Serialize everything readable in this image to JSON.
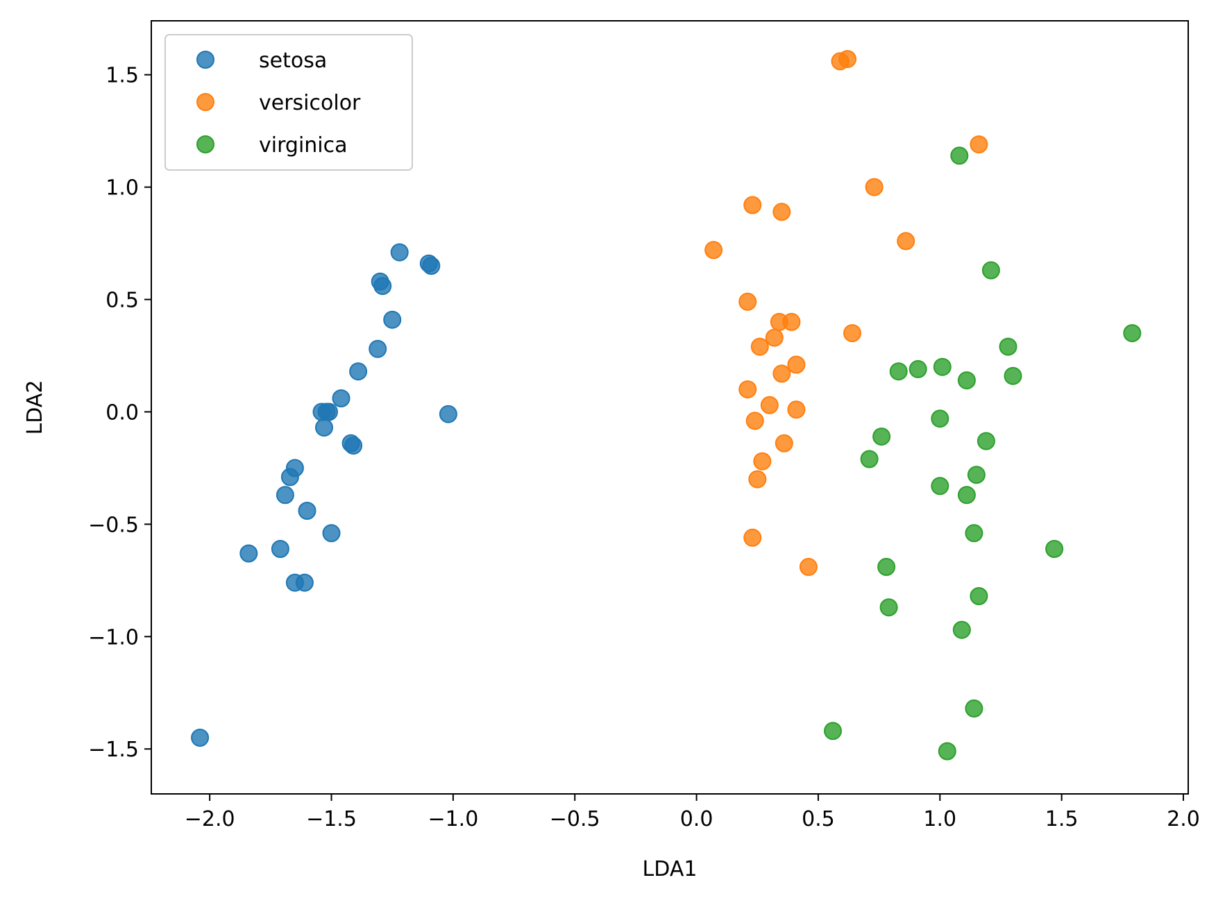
{
  "chart_data": {
    "type": "scatter",
    "title": "",
    "xlabel": "LDA1",
    "ylabel": "LDA2",
    "xlim": [
      -2.24,
      2.02
    ],
    "ylim": [
      -1.7,
      1.74
    ],
    "xticks": [
      -2.0,
      -1.5,
      -1.0,
      -0.5,
      0.0,
      0.5,
      1.0,
      1.5,
      2.0
    ],
    "yticks": [
      -1.5,
      -1.0,
      -0.5,
      0.0,
      0.5,
      1.0,
      1.5
    ],
    "xtick_labels": [
      "−2.0",
      "−1.5",
      "−1.0",
      "−0.5",
      "0.0",
      "0.5",
      "1.0",
      "1.5",
      "2.0"
    ],
    "ytick_labels": [
      "−1.5",
      "−1.0",
      "−0.5",
      "0.0",
      "0.5",
      "1.0",
      "1.5"
    ],
    "grid": false,
    "legend_position": "top-left",
    "series": [
      {
        "name": "setosa",
        "color": "#1f77b4",
        "points": [
          [
            -2.04,
            -1.45
          ],
          [
            -1.84,
            -0.63
          ],
          [
            -1.71,
            -0.61
          ],
          [
            -1.69,
            -0.37
          ],
          [
            -1.67,
            -0.29
          ],
          [
            -1.65,
            -0.25
          ],
          [
            -1.65,
            -0.76
          ],
          [
            -1.61,
            -0.76
          ],
          [
            -1.6,
            -0.44
          ],
          [
            -1.54,
            0.0
          ],
          [
            -1.53,
            -0.07
          ],
          [
            -1.52,
            0.0
          ],
          [
            -1.51,
            0.0
          ],
          [
            -1.5,
            -0.54
          ],
          [
            -1.46,
            0.06
          ],
          [
            -1.42,
            -0.14
          ],
          [
            -1.41,
            -0.15
          ],
          [
            -1.39,
            0.18
          ],
          [
            -1.31,
            0.28
          ],
          [
            -1.3,
            0.58
          ],
          [
            -1.29,
            0.56
          ],
          [
            -1.25,
            0.41
          ],
          [
            -1.22,
            0.71
          ],
          [
            -1.1,
            0.66
          ],
          [
            -1.09,
            0.65
          ],
          [
            -1.02,
            -0.01
          ]
        ]
      },
      {
        "name": "versicolor",
        "color": "#ff7f0e",
        "points": [
          [
            0.07,
            0.72
          ],
          [
            0.21,
            0.49
          ],
          [
            0.21,
            0.1
          ],
          [
            0.23,
            0.92
          ],
          [
            0.23,
            -0.56
          ],
          [
            0.24,
            -0.04
          ],
          [
            0.25,
            -0.3
          ],
          [
            0.26,
            0.29
          ],
          [
            0.27,
            -0.22
          ],
          [
            0.3,
            0.03
          ],
          [
            0.32,
            0.33
          ],
          [
            0.34,
            0.4
          ],
          [
            0.35,
            0.89
          ],
          [
            0.35,
            0.17
          ],
          [
            0.36,
            -0.14
          ],
          [
            0.39,
            0.4
          ],
          [
            0.41,
            0.21
          ],
          [
            0.41,
            0.01
          ],
          [
            0.46,
            -0.69
          ],
          [
            0.59,
            1.56
          ],
          [
            0.62,
            1.57
          ],
          [
            0.64,
            0.35
          ],
          [
            0.73,
            1.0
          ],
          [
            0.86,
            0.76
          ],
          [
            1.16,
            1.19
          ]
        ]
      },
      {
        "name": "virginica",
        "color": "#2ca02c",
        "points": [
          [
            0.56,
            -1.42
          ],
          [
            0.71,
            -0.21
          ],
          [
            0.76,
            -0.11
          ],
          [
            0.78,
            -0.69
          ],
          [
            0.79,
            -0.87
          ],
          [
            0.83,
            0.18
          ],
          [
            0.91,
            0.19
          ],
          [
            1.0,
            -0.33
          ],
          [
            1.0,
            -0.03
          ],
          [
            1.01,
            0.2
          ],
          [
            1.03,
            -1.51
          ],
          [
            1.08,
            1.14
          ],
          [
            1.09,
            -0.97
          ],
          [
            1.11,
            0.14
          ],
          [
            1.11,
            -0.37
          ],
          [
            1.14,
            -0.54
          ],
          [
            1.14,
            -1.32
          ],
          [
            1.15,
            -0.28
          ],
          [
            1.16,
            -0.82
          ],
          [
            1.19,
            -0.13
          ],
          [
            1.21,
            0.63
          ],
          [
            1.28,
            0.29
          ],
          [
            1.3,
            0.16
          ],
          [
            1.47,
            -0.61
          ],
          [
            1.79,
            0.35
          ]
        ]
      }
    ]
  }
}
